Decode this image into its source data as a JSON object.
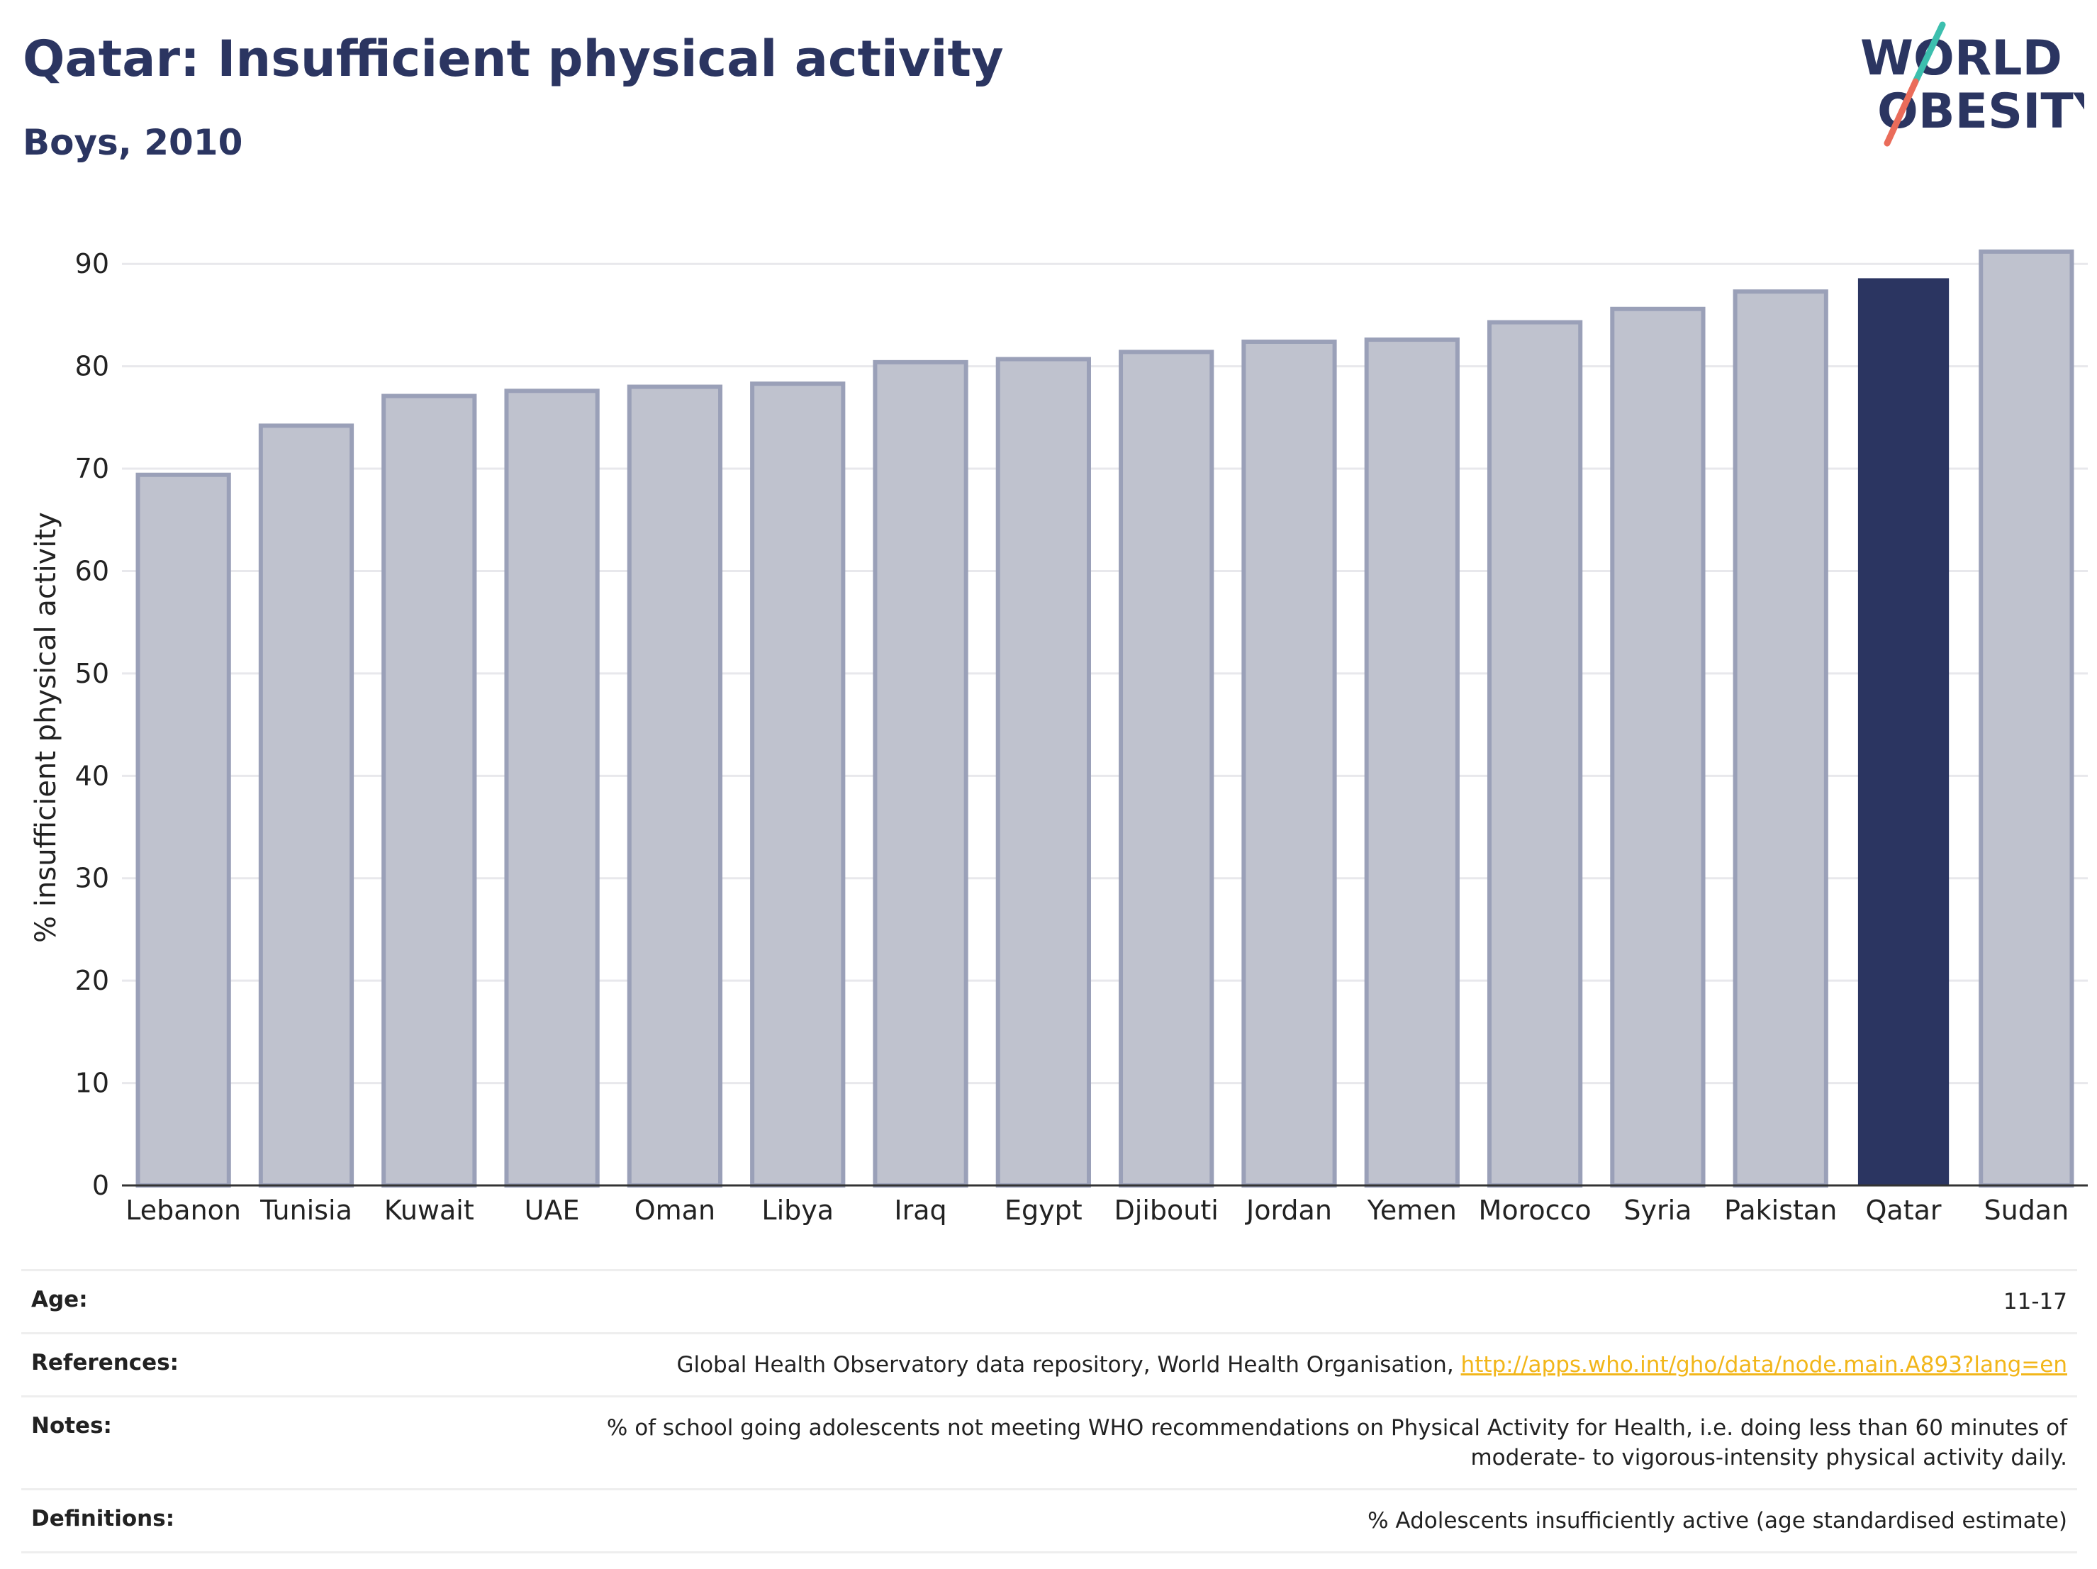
{
  "header": {
    "title": "Qatar: Insufficient physical activity",
    "subtitle": "Boys, 2010"
  },
  "logo": {
    "line1": "WORLD",
    "line2": "OBESITY"
  },
  "colors": {
    "bar_default": "#bfc2ce",
    "bar_default_stroke": "#9aa0b8",
    "bar_highlight": "#2b3561",
    "grid": "#e8e8ec",
    "logo_teal": "#3cbfae",
    "logo_coral": "#ea6c5a"
  },
  "chart_data": {
    "type": "bar",
    "title": "Qatar: Insufficient physical activity",
    "subtitle": "Boys, 2010",
    "ylabel": "% insufficient physical activity",
    "xlabel": "",
    "ylim": [
      0,
      95
    ],
    "yticks": [
      0,
      10,
      20,
      30,
      40,
      50,
      60,
      70,
      80,
      90
    ],
    "grid": true,
    "highlight": "Qatar",
    "categories": [
      "Lebanon",
      "Tunisia",
      "Kuwait",
      "UAE",
      "Oman",
      "Libya",
      "Iraq",
      "Egypt",
      "Djibouti",
      "Jordan",
      "Yemen",
      "Morocco",
      "Syria",
      "Pakistan",
      "Qatar",
      "Sudan"
    ],
    "values": [
      69.4,
      74.2,
      77.1,
      77.6,
      78.0,
      78.3,
      80.4,
      80.7,
      81.4,
      82.4,
      82.6,
      84.3,
      85.6,
      87.3,
      88.6,
      91.2
    ]
  },
  "meta": {
    "age_label": "Age:",
    "age_value": "11-17",
    "references_label": "References:",
    "references_text": "Global Health Observatory data repository, World Health Organisation,",
    "references_link": "http://apps.who.int/gho/data/node.main.A893?lang=en",
    "notes_label": "Notes:",
    "notes_line1": "% of school going adolescents not meeting WHO recommendations on Physical Activity for Health, i.e. doing less than 60 minutes of",
    "notes_line2": "moderate- to vigorous-intensity physical activity daily.",
    "definitions_label": "Definitions:",
    "definitions_value": "% Adolescents insufficiently active (age standardised estimate)"
  }
}
